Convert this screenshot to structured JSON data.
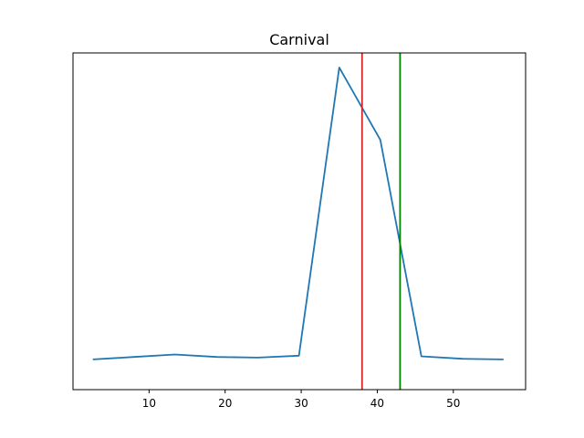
{
  "chart_data": {
    "type": "line",
    "title": "Carnival",
    "xlabel": "",
    "ylabel": "",
    "xlim": [
      0,
      59.5
    ],
    "ylim": [
      0,
      100
    ],
    "xticks": [
      10,
      20,
      30,
      40,
      50
    ],
    "grid": false,
    "series": [
      {
        "color": "#1f77b4",
        "x": [
          2.6,
          8.0,
          13.4,
          18.9,
          24.3,
          29.7,
          35.0,
          40.4,
          45.8,
          51.2,
          56.6
        ],
        "y": [
          4.8,
          5.6,
          6.4,
          5.6,
          5.4,
          6.0,
          100.0,
          76.4,
          5.8,
          5.0,
          4.8
        ]
      }
    ],
    "vlines": [
      {
        "x": 38.0,
        "color": "#d62728"
      },
      {
        "x": 43.0,
        "color": "#008000"
      }
    ]
  }
}
